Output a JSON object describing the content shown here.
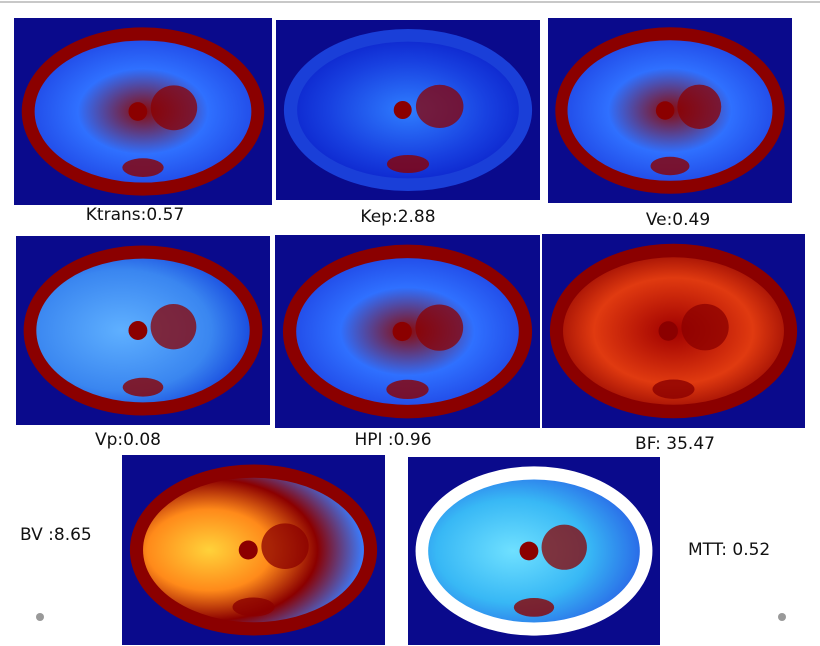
{
  "panels": [
    {
      "label": "Ktrans:0.57"
    },
    {
      "label": "Kep:2.88"
    },
    {
      "label": "Ve:0.49"
    },
    {
      "label": "Vp:0.08"
    },
    {
      "label": "HPI :0.96"
    },
    {
      "label": "BF: 35.47"
    },
    {
      "label": "BV :8.65"
    },
    {
      "label": "MTT: 0.52"
    }
  ]
}
